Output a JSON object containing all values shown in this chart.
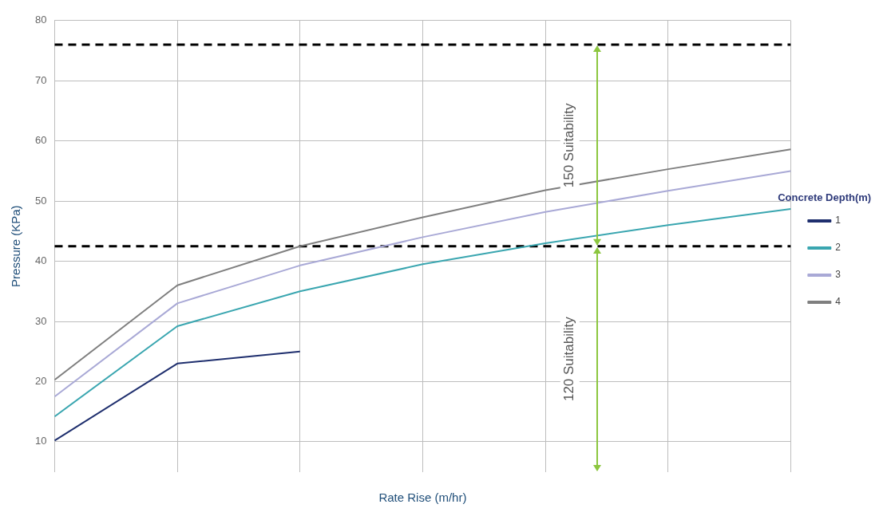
{
  "chart_data": {
    "type": "line",
    "xlabel": "Rate Rise (m/hr)",
    "ylabel": "Pressure (KPa)",
    "legend_title": "Concrete Depth(m)",
    "categories": [
      null,
      null,
      null,
      null,
      null,
      null,
      null
    ],
    "series": [
      {
        "name": "1",
        "color": "#1f2f6e",
        "values": [
          10.2,
          23,
          25,
          null,
          null,
          null,
          null
        ]
      },
      {
        "name": "2",
        "color": "#3aa6b0",
        "values": [
          14.2,
          29.2,
          35,
          39.5,
          43,
          46,
          48.7
        ]
      },
      {
        "name": "3",
        "color": "#a9a9d6",
        "values": [
          17.5,
          33,
          39.3,
          44,
          48.2,
          51.7,
          55
        ]
      },
      {
        "name": "4",
        "color": "#7f7f7f",
        "values": [
          20.3,
          36,
          42.5,
          47.3,
          51.8,
          55.3,
          58.6
        ]
      }
    ],
    "ylim": [
      5,
      80
    ],
    "yticks": [
      10,
      20,
      30,
      40,
      50,
      60,
      70,
      80
    ],
    "grid": true,
    "legend": "right",
    "marker": "none",
    "line_style": "solid",
    "ref_lines": [
      {
        "axis": "y",
        "value": 76,
        "color": "#000000",
        "line_style": "dashed"
      },
      {
        "axis": "y",
        "value": 42.5,
        "color": "#000000",
        "line_style": "dashed"
      }
    ],
    "annotations": [
      "150 Suitability",
      "120 Suitability"
    ]
  }
}
